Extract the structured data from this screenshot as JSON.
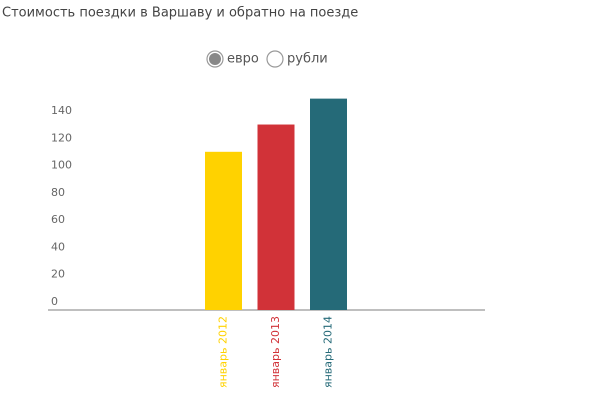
{
  "chart_data": {
    "type": "bar",
    "title": "Стоимость поездки в Варшаву и обратно на поезде",
    "categories": [
      "январь 2012",
      "январь 2013",
      "январь 2014"
    ],
    "values": [
      116,
      136,
      155
    ],
    "colors": [
      "#ffd200",
      "#d13238",
      "#256a78"
    ],
    "ylim": [
      0,
      160
    ],
    "yticks": [
      0,
      20,
      40,
      60,
      80,
      100,
      120,
      140
    ],
    "grid": false
  },
  "controls": {
    "options": [
      "евро",
      "рубли"
    ],
    "selected": 0
  }
}
